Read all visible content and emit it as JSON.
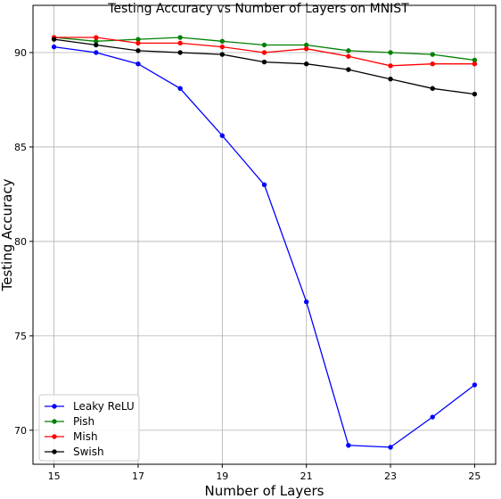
{
  "chart_data": {
    "type": "line",
    "title": "Testing Accuracy vs Number of Layers on MNIST",
    "xlabel": "Number of Layers",
    "ylabel": "Testing Accuracy",
    "x": [
      15,
      16,
      17,
      18,
      19,
      20,
      21,
      22,
      23,
      24,
      25
    ],
    "x_ticks": [
      15,
      17,
      19,
      21,
      23,
      25
    ],
    "y_ticks": [
      70,
      75,
      80,
      85,
      90
    ],
    "xlim": [
      14.5,
      25.5
    ],
    "ylim": [
      68.2,
      92.5
    ],
    "grid": true,
    "legend_position": "lower-left",
    "series": [
      {
        "name": "Leaky ReLU",
        "color": "#0000ff",
        "values": [
          90.3,
          90.0,
          89.4,
          88.1,
          85.6,
          83.0,
          76.8,
          69.2,
          69.1,
          70.7,
          72.4
        ]
      },
      {
        "name": "Pish",
        "color": "#008000",
        "values": [
          90.8,
          90.6,
          90.7,
          90.8,
          90.6,
          90.4,
          90.4,
          90.1,
          90.0,
          89.9,
          89.6
        ]
      },
      {
        "name": "Mish",
        "color": "#ff0000",
        "values": [
          90.8,
          90.8,
          90.5,
          90.5,
          90.3,
          90.0,
          90.2,
          89.8,
          89.3,
          89.4,
          89.4
        ]
      },
      {
        "name": "Swish",
        "color": "#000000",
        "values": [
          90.7,
          90.4,
          90.1,
          90.0,
          89.9,
          89.5,
          89.4,
          89.1,
          88.6,
          88.1,
          87.8
        ]
      }
    ]
  }
}
